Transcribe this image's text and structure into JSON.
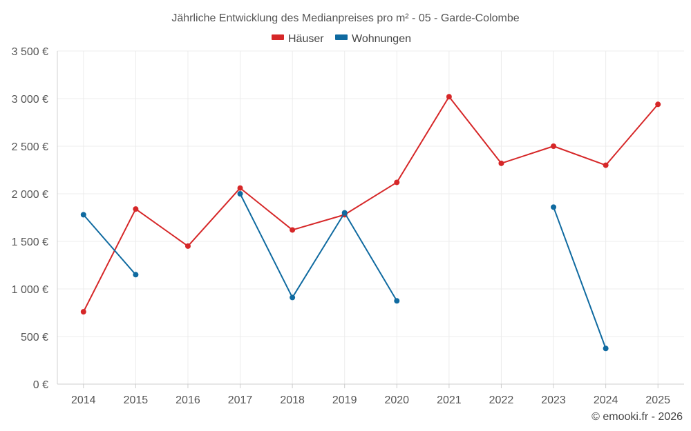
{
  "chart_data": {
    "type": "line",
    "title": "Jährliche Entwicklung des Medianpreises pro m² - 05 - Garde-Colombe",
    "categories": [
      "2014",
      "2015",
      "2016",
      "2017",
      "2018",
      "2019",
      "2020",
      "2021",
      "2022",
      "2023",
      "2024",
      "2025"
    ],
    "ylim": [
      0,
      3500
    ],
    "yticks": [
      {
        "value": 0,
        "label": "0 €"
      },
      {
        "value": 500,
        "label": "500 €"
      },
      {
        "value": 1000,
        "label": "1 000 €"
      },
      {
        "value": 1500,
        "label": "1 500 €"
      },
      {
        "value": 2000,
        "label": "2 000 €"
      },
      {
        "value": 2500,
        "label": "2 500 €"
      },
      {
        "value": 3000,
        "label": "3 000 €"
      },
      {
        "value": 3500,
        "label": "3 500 €"
      }
    ],
    "grid": true,
    "legend_position": "top-center",
    "series": [
      {
        "name": "Häuser",
        "color": "#d62728",
        "values": [
          760,
          1840,
          1450,
          2060,
          1620,
          1780,
          2120,
          3020,
          2320,
          2500,
          2300,
          2940
        ]
      },
      {
        "name": "Wohnungen",
        "color": "#0f6aa0",
        "values": [
          1780,
          1150,
          null,
          2000,
          910,
          1800,
          875,
          null,
          null,
          1860,
          375,
          null
        ]
      }
    ],
    "footer": "© emooki.fr - 2026"
  }
}
